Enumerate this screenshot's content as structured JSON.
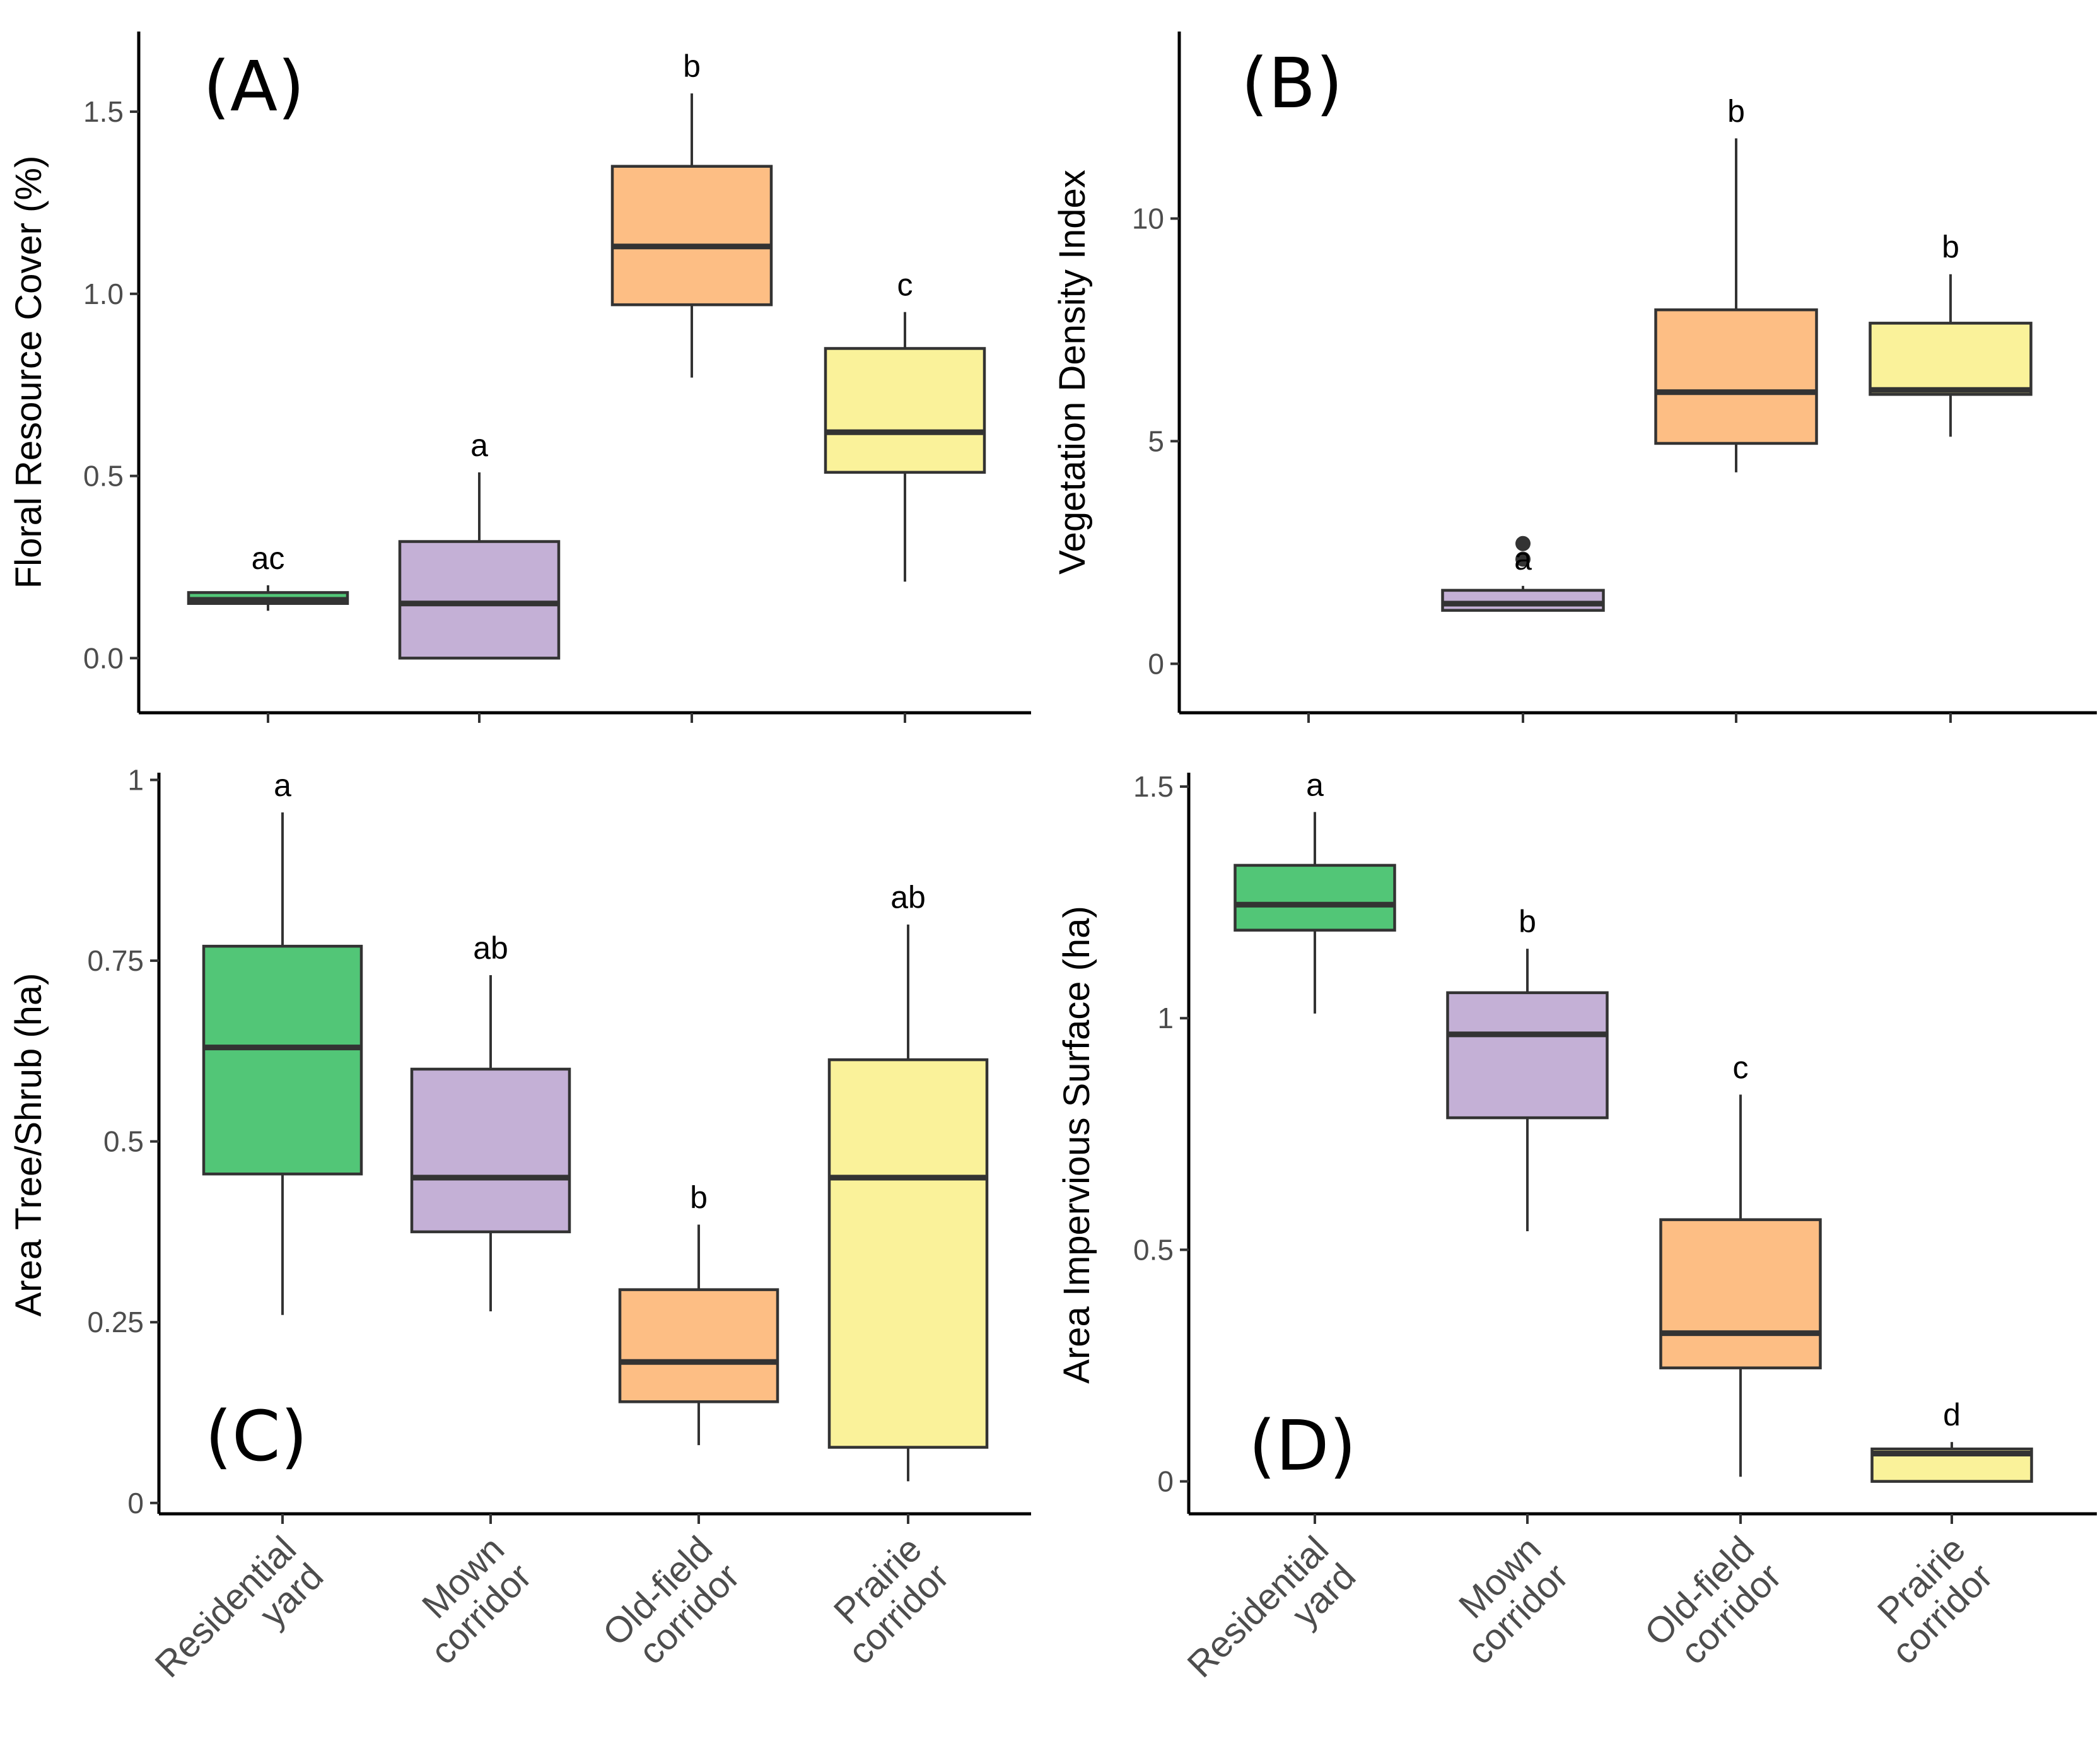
{
  "chart_data": [
    {
      "type": "box",
      "panel": "(A)",
      "ylabel": "Floral Resource Cover (%)",
      "ylim": [
        -0.15,
        1.72
      ],
      "yticks": [
        0.0,
        0.5,
        1.0,
        1.5
      ],
      "ytick_labels": [
        "0.0",
        "0.5",
        "1.0",
        "1.5"
      ],
      "categories": [
        "Residential yard",
        "Mown corridor",
        "Old-field corridor",
        "Prairie corridor"
      ],
      "boxes": [
        {
          "min": 0.13,
          "q1": 0.15,
          "median": 0.16,
          "q3": 0.18,
          "max": 0.2,
          "outliers": [],
          "sig": "ac"
        },
        {
          "min": 0.0,
          "q1": 0.0,
          "median": 0.15,
          "q3": 0.32,
          "max": 0.51,
          "outliers": [],
          "sig": "a"
        },
        {
          "min": 0.77,
          "q1": 0.97,
          "median": 1.13,
          "q3": 1.35,
          "max": 1.55,
          "outliers": [],
          "sig": "b"
        },
        {
          "min": 0.21,
          "q1": 0.51,
          "median": 0.62,
          "q3": 0.85,
          "max": 0.95,
          "outliers": [],
          "sig": "c"
        }
      ]
    },
    {
      "type": "box",
      "panel": "(B)",
      "ylabel": "Vegetation Density Index",
      "ylim": [
        -1.1,
        14.2
      ],
      "yticks": [
        0,
        5,
        10
      ],
      "ytick_labels": [
        "0",
        "5",
        "10"
      ],
      "categories": [
        "Residential yard",
        "Mown corridor",
        "Old-field corridor",
        "Prairie corridor"
      ],
      "boxes": [
        null,
        {
          "min": 1.2,
          "q1": 1.2,
          "median": 1.35,
          "q3": 1.65,
          "max": 1.75,
          "outliers": [
            2.35,
            2.7
          ],
          "sig": "a"
        },
        {
          "min": 4.3,
          "q1": 4.95,
          "median": 6.1,
          "q3": 7.95,
          "max": 11.8,
          "outliers": [],
          "sig": "b"
        },
        {
          "min": 5.1,
          "q1": 6.05,
          "median": 6.15,
          "q3": 7.65,
          "max": 8.75,
          "outliers": [],
          "sig": "b"
        }
      ]
    },
    {
      "type": "box",
      "panel": "(C)",
      "ylabel": "Area Tree/Shrub (ha)",
      "ylim": [
        -0.015,
        1.01
      ],
      "yticks": [
        0,
        0.25,
        0.5,
        0.75,
        1
      ],
      "ytick_labels": [
        "0",
        "0.25",
        "0.5",
        "0.75",
        "1"
      ],
      "categories": [
        "Residential yard",
        "Mown corridor",
        "Old-field corridor",
        "Prairie corridor"
      ],
      "category_lines": [
        [
          "Residential",
          "yard"
        ],
        [
          "Mown",
          "corridor"
        ],
        [
          "Old-field",
          "corridor"
        ],
        [
          "Prairie",
          "corridor"
        ]
      ],
      "boxes": [
        {
          "min": 0.26,
          "q1": 0.455,
          "median": 0.63,
          "q3": 0.77,
          "max": 0.955,
          "outliers": [],
          "sig": "a"
        },
        {
          "min": 0.265,
          "q1": 0.375,
          "median": 0.45,
          "q3": 0.6,
          "max": 0.73,
          "outliers": [],
          "sig": "ab"
        },
        {
          "min": 0.08,
          "q1": 0.14,
          "median": 0.195,
          "q3": 0.295,
          "max": 0.385,
          "outliers": [],
          "sig": "b"
        },
        {
          "min": 0.03,
          "q1": 0.077,
          "median": 0.45,
          "q3": 0.613,
          "max": 0.8,
          "outliers": [],
          "sig": "ab"
        }
      ]
    },
    {
      "type": "box",
      "panel": "(D)",
      "ylabel": "Area Impervious Surface (ha)",
      "ylim": [
        -0.07,
        1.53
      ],
      "yticks": [
        0,
        0.5,
        1,
        1.5
      ],
      "ytick_labels": [
        "0",
        "0.5",
        "1",
        "1.5"
      ],
      "categories": [
        "Residential yard",
        "Mown corridor",
        "Old-field corridor",
        "Prairie corridor"
      ],
      "category_lines": [
        [
          "Residential",
          "yard"
        ],
        [
          "Mown",
          "corridor"
        ],
        [
          "Old-field",
          "corridor"
        ],
        [
          "Prairie",
          "corridor"
        ]
      ],
      "boxes": [
        {
          "min": 1.01,
          "q1": 1.19,
          "median": 1.245,
          "q3": 1.33,
          "max": 1.445,
          "outliers": [],
          "sig": "a"
        },
        {
          "min": 0.54,
          "q1": 0.785,
          "median": 0.965,
          "q3": 1.055,
          "max": 1.15,
          "outliers": [],
          "sig": "b"
        },
        {
          "min": 0.01,
          "q1": 0.245,
          "median": 0.32,
          "q3": 0.565,
          "max": 0.835,
          "outliers": [],
          "sig": "c"
        },
        {
          "min": 0.0,
          "q1": 0.0,
          "median": 0.06,
          "q3": 0.07,
          "max": 0.085,
          "outliers": [],
          "sig": "d"
        }
      ]
    }
  ],
  "colors": {
    "Residential yard": "#52c677",
    "Mown corridor": "#c4b0d6",
    "Old-field corridor": "#fdbe84",
    "Prairie corridor": "#faf29a"
  }
}
